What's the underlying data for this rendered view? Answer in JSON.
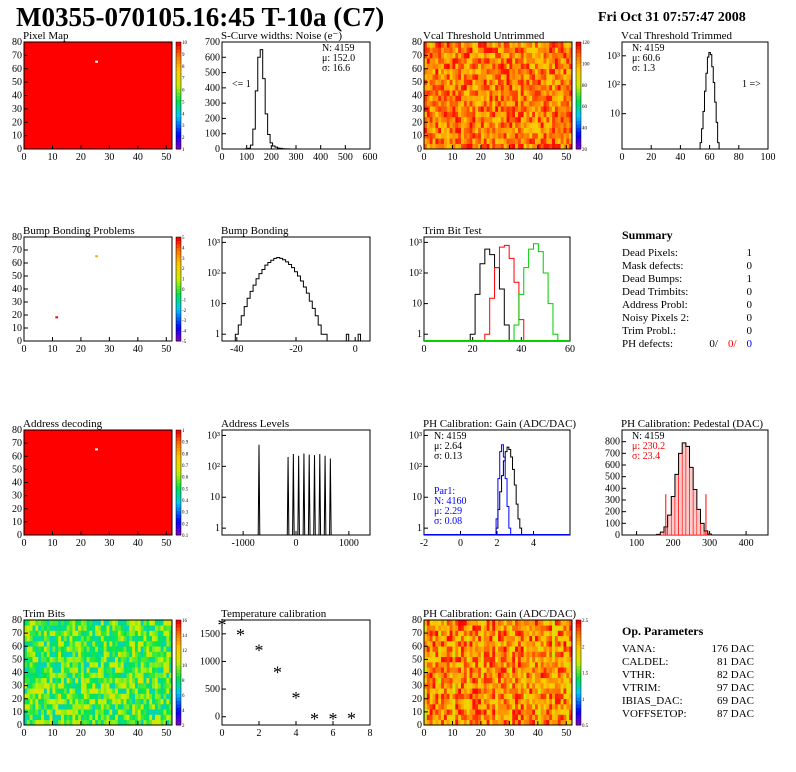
{
  "header": {
    "title": "M0355-070105.16:45 T-10a (C7)",
    "date": "Fri Oct 31 07:57:47 2008"
  },
  "colors": {
    "red": "#ff0000",
    "blue": "#0000ff",
    "green": "#00cc00",
    "black": "#000000"
  },
  "panels": {
    "pixel_map": {
      "title": "Pixel Map"
    },
    "noise": {
      "title": "S-Curve widths: Noise (e⁻)",
      "stats": [
        "N: 4159",
        "μ: 152.0",
        "σ: 16.6"
      ],
      "annotation": "<= 1"
    },
    "vcal_untrimmed": {
      "title": "Vcal Threshold Untrimmed"
    },
    "vcal_trimmed": {
      "title": "Vcal Threshold Trimmed",
      "stats": [
        "N: 4159",
        "μ: 60.6",
        "σ: 1.3"
      ],
      "annotation": "1 =>"
    },
    "bump_problems": {
      "title": "Bump Bonding Problems"
    },
    "bump_bonding": {
      "title": "Bump Bonding"
    },
    "trim_bit_test": {
      "title": "Trim Bit Test"
    },
    "address_decoding": {
      "title": "Address decoding"
    },
    "address_levels": {
      "title": "Address Levels"
    },
    "ph_gain": {
      "title": "PH Calibration: Gain (ADC/DAC)",
      "stats": [
        "N: 4159",
        "μ: 2.64",
        "σ: 0.13"
      ],
      "par1": [
        "Par1:",
        "N: 4160",
        "μ: 2.29",
        "σ: 0.08"
      ]
    },
    "ph_pedestal": {
      "title": "PH Calibration: Pedestal (DAC)",
      "stats": [
        "N: 4159",
        "μ: 230.2",
        "σ: 23.4"
      ]
    },
    "trim_bits": {
      "title": "Trim Bits"
    },
    "temperature": {
      "title": "Temperature calibration"
    },
    "ph_gain_map": {
      "title": "PH Calibration: Gain (ADC/DAC)"
    }
  },
  "summary": {
    "title": "Summary",
    "rows": [
      {
        "label": "Dead Pixels:",
        "value": "1"
      },
      {
        "label": "Mask defects:",
        "value": "0"
      },
      {
        "label": "Dead Bumps:",
        "value": "1"
      },
      {
        "label": "Dead Trimbits:",
        "value": "0"
      },
      {
        "label": "Address Probl:",
        "value": "0"
      },
      {
        "label": "Noisy Pixels 2:",
        "value": "0"
      },
      {
        "label": "Trim Probl.:",
        "value": "0"
      }
    ],
    "ph_defects": {
      "label": "PH defects:",
      "v1": "0/",
      "v2": "0/",
      "v3": "0"
    }
  },
  "params": {
    "title": "Op. Parameters",
    "rows": [
      {
        "label": "VANA:",
        "value": "176 DAC"
      },
      {
        "label": "CALDEL:",
        "value": "81 DAC"
      },
      {
        "label": "VTHR:",
        "value": "82 DAC"
      },
      {
        "label": "VTRIM:",
        "value": "97 DAC"
      },
      {
        "label": "IBIAS_DAC:",
        "value": "69 DAC"
      },
      {
        "label": "VOFFSETOP:",
        "value": "87 DAC"
      }
    ]
  },
  "chart_data": [
    {
      "id": "pixel_map",
      "type": "heatmap",
      "title": "Pixel Map",
      "xlim": [
        0,
        52
      ],
      "ylim": [
        0,
        80
      ],
      "xticks": [
        0,
        10,
        20,
        30,
        40,
        50
      ],
      "yticks": [
        0,
        10,
        20,
        30,
        40,
        50,
        60,
        70,
        80
      ],
      "zticks": [
        1,
        2,
        3,
        4,
        5,
        6,
        7,
        8,
        9,
        10
      ],
      "fill_value": 10,
      "special_pixels": [
        {
          "x": 25,
          "y": 65,
          "value": 0
        }
      ]
    },
    {
      "id": "noise",
      "type": "line",
      "title": "S-Curve widths: Noise (e⁻)",
      "xlim": [
        0,
        600
      ],
      "ylim": [
        0,
        700
      ],
      "xticks": [
        0,
        100,
        200,
        300,
        400,
        500,
        600
      ],
      "yticks": [
        0,
        100,
        200,
        300,
        400,
        500,
        600,
        700
      ],
      "x": [
        100,
        110,
        120,
        130,
        140,
        150,
        160,
        170,
        180,
        190,
        200,
        210,
        220,
        230,
        240,
        250,
        260,
        270
      ],
      "values": [
        2,
        5,
        25,
        130,
        380,
        600,
        650,
        460,
        230,
        95,
        40,
        20,
        12,
        6,
        4,
        2,
        1,
        1
      ]
    },
    {
      "id": "vcal_untrimmed",
      "type": "heatmap",
      "title": "Vcal Threshold Untrimmed",
      "xlim": [
        0,
        52
      ],
      "ylim": [
        0,
        80
      ],
      "xticks": [
        0,
        10,
        20,
        30,
        40,
        50
      ],
      "yticks": [
        0,
        10,
        20,
        30,
        40,
        50,
        60,
        70,
        80
      ],
      "zticks": [
        20,
        40,
        60,
        80,
        100,
        120
      ]
    },
    {
      "id": "vcal_trimmed",
      "type": "line",
      "log_y": true,
      "title": "Vcal Threshold Trimmed",
      "xlim": [
        0,
        100
      ],
      "ylim": [
        0.6,
        3000
      ],
      "xticks": [
        0,
        20,
        40,
        60,
        80,
        100
      ],
      "yticks": [
        10,
        100,
        1000
      ],
      "x": [
        54,
        55,
        56,
        57,
        58,
        59,
        60,
        61,
        62,
        63,
        64,
        65,
        66
      ],
      "values": [
        1,
        3,
        12,
        60,
        250,
        900,
        1300,
        1100,
        420,
        120,
        25,
        5,
        1
      ]
    },
    {
      "id": "bump_problems",
      "type": "heatmap",
      "title": "Bump Bonding Problems",
      "xlim": [
        0,
        52
      ],
      "ylim": [
        0,
        80
      ],
      "xticks": [
        0,
        10,
        20,
        30,
        40,
        50
      ],
      "yticks": [
        0,
        10,
        20,
        30,
        40,
        50,
        60,
        70,
        80
      ],
      "zticks": [
        -5,
        -4,
        -3,
        -2,
        -1,
        0,
        1,
        2,
        3,
        4,
        5
      ],
      "special_pixels": [
        {
          "x": 25,
          "y": 65,
          "value": 3
        },
        {
          "x": 11,
          "y": 18,
          "value": 5
        }
      ]
    },
    {
      "id": "bump_bonding",
      "type": "line",
      "log_y": true,
      "title": "Bump Bonding",
      "xlim": [
        -45,
        5
      ],
      "ylim": [
        0.6,
        1500
      ],
      "xticks": [
        -40,
        -20,
        0
      ],
      "yticks": [
        1,
        10,
        100,
        1000
      ],
      "x": [
        -40,
        -39,
        -38,
        -37,
        -36,
        -35,
        -34,
        -33,
        -32,
        -31,
        -30,
        -29,
        -28,
        -27,
        -26,
        -25,
        -24,
        -23,
        -22,
        -21,
        -20,
        -19,
        -18,
        -17,
        -16,
        -15,
        -14,
        -13,
        -12,
        -11,
        -10
      ],
      "values": [
        1,
        2,
        4,
        8,
        15,
        25,
        40,
        65,
        95,
        130,
        180,
        220,
        260,
        300,
        320,
        300,
        270,
        230,
        190,
        150,
        110,
        80,
        55,
        35,
        22,
        12,
        7,
        4,
        2,
        1,
        1
      ]
    },
    {
      "id": "trim_bit_test",
      "type": "line",
      "log_y": true,
      "title": "Trim Bit Test",
      "xlim": [
        0,
        60
      ],
      "ylim": [
        0.6,
        1500
      ],
      "xticks": [
        0,
        20,
        40,
        60
      ],
      "yticks": [
        1,
        10,
        100,
        1000
      ],
      "x": [
        20,
        22,
        24,
        26,
        28,
        30,
        32,
        34,
        36,
        38,
        40,
        42,
        44,
        46,
        48,
        50,
        52,
        54
      ],
      "series": [
        {
          "name": "",
          "color": "#000000",
          "values": [
            1,
            20,
            200,
            600,
            400,
            150,
            30,
            2,
            null,
            null,
            null,
            null,
            null,
            null,
            null,
            null,
            null,
            null
          ]
        },
        {
          "name": "",
          "color": "#ff0000",
          "values": [
            null,
            null,
            null,
            1,
            15,
            150,
            700,
            800,
            300,
            50,
            3,
            null,
            null,
            null,
            null,
            null,
            null,
            null
          ]
        },
        {
          "name": "",
          "color": "#00cc00",
          "values": [
            null,
            null,
            null,
            null,
            null,
            null,
            null,
            null,
            null,
            2,
            20,
            150,
            600,
            900,
            500,
            100,
            10,
            1
          ]
        }
      ]
    },
    {
      "id": "address_decoding",
      "type": "heatmap",
      "title": "Address decoding",
      "xlim": [
        0,
        52
      ],
      "ylim": [
        0,
        80
      ],
      "xticks": [
        0,
        10,
        20,
        30,
        40,
        50
      ],
      "yticks": [
        0,
        10,
        20,
        30,
        40,
        50,
        60,
        70,
        80
      ],
      "zticks": [
        0.1,
        0.2,
        0.3,
        0.4,
        0.5,
        0.6,
        0.7,
        0.8,
        0.9,
        1
      ],
      "fill_value": 1,
      "special_pixels": [
        {
          "x": 25,
          "y": 65,
          "value": 0
        }
      ]
    },
    {
      "id": "address_levels",
      "type": "line",
      "log_y": true,
      "title": "Address Levels",
      "xlim": [
        -1400,
        1400
      ],
      "ylim": [
        0.6,
        1500
      ],
      "xticks": [
        -1000,
        0,
        1000
      ],
      "yticks": [
        1,
        10,
        100,
        1000
      ],
      "x": [
        -700,
        -150,
        -50,
        50,
        150,
        250,
        350,
        450,
        550,
        650
      ],
      "values": [
        500,
        200,
        250,
        220,
        260,
        240,
        230,
        250,
        220,
        180
      ]
    },
    {
      "id": "ph_gain",
      "type": "line",
      "log_y": true,
      "title": "PH Calibration: Gain (ADC/DAC)",
      "xlim": [
        -2,
        6
      ],
      "ylim": [
        0.6,
        1500
      ],
      "xticks": [
        -2,
        0,
        2,
        4
      ],
      "yticks": [
        1,
        10,
        100,
        1000
      ],
      "x": [
        2.0,
        2.1,
        2.2,
        2.3,
        2.4,
        2.5,
        2.6,
        2.7,
        2.8,
        2.9,
        3.0,
        3.1,
        3.2,
        3.3
      ],
      "series": [
        {
          "name": "",
          "color": "#000000",
          "values": [
            1,
            4,
            15,
            50,
            150,
            300,
            420,
            350,
            200,
            80,
            25,
            6,
            2,
            1
          ]
        },
        {
          "name": "",
          "color": "#0000ff",
          "values": [
            2,
            40,
            300,
            500,
            200,
            40,
            5,
            1,
            null,
            null,
            null,
            null,
            null,
            null
          ]
        }
      ]
    },
    {
      "id": "ph_pedestal",
      "type": "bar",
      "title": "PH Calibration: Pedestal (DAC)",
      "xlim": [
        60,
        460
      ],
      "ylim": [
        0,
        900
      ],
      "xticks": [
        100,
        200,
        300,
        400
      ],
      "yticks": [
        0,
        100,
        200,
        300,
        400,
        500,
        600,
        700,
        800
      ],
      "x": [
        160,
        170,
        180,
        190,
        200,
        210,
        220,
        230,
        240,
        250,
        260,
        270,
        280,
        290,
        300
      ],
      "values": [
        5,
        25,
        70,
        170,
        330,
        520,
        700,
        790,
        760,
        580,
        390,
        220,
        100,
        35,
        8
      ]
    },
    {
      "id": "trim_bits",
      "type": "heatmap",
      "title": "Trim Bits",
      "xlim": [
        0,
        52
      ],
      "ylim": [
        0,
        80
      ],
      "xticks": [
        0,
        10,
        20,
        30,
        40,
        50
      ],
      "yticks": [
        0,
        10,
        20,
        30,
        40,
        50,
        60,
        70,
        80
      ],
      "zticks": [
        2,
        4,
        6,
        8,
        10,
        12,
        14,
        16
      ]
    },
    {
      "id": "temperature",
      "type": "scatter",
      "title": "Temperature calibration",
      "xlim": [
        0,
        8
      ],
      "ylim": [
        -150,
        1750
      ],
      "xticks": [
        0,
        2,
        4,
        6,
        8
      ],
      "yticks": [
        0,
        500,
        1000,
        1500
      ],
      "x": [
        0,
        1,
        2,
        3,
        4,
        5,
        6,
        7
      ],
      "values": [
        1640,
        1460,
        1180,
        780,
        320,
        -60,
        -60,
        -50
      ]
    },
    {
      "id": "ph_gain_map",
      "type": "heatmap",
      "title": "PH Calibration: Gain (ADC/DAC)",
      "xlim": [
        0,
        52
      ],
      "ylim": [
        0,
        80
      ],
      "xticks": [
        0,
        10,
        20,
        30,
        40,
        50
      ],
      "yticks": [
        0,
        10,
        20,
        30,
        40,
        50,
        60,
        70,
        80
      ],
      "zticks": [
        0.5,
        1,
        1.5,
        2,
        2.5
      ]
    }
  ]
}
